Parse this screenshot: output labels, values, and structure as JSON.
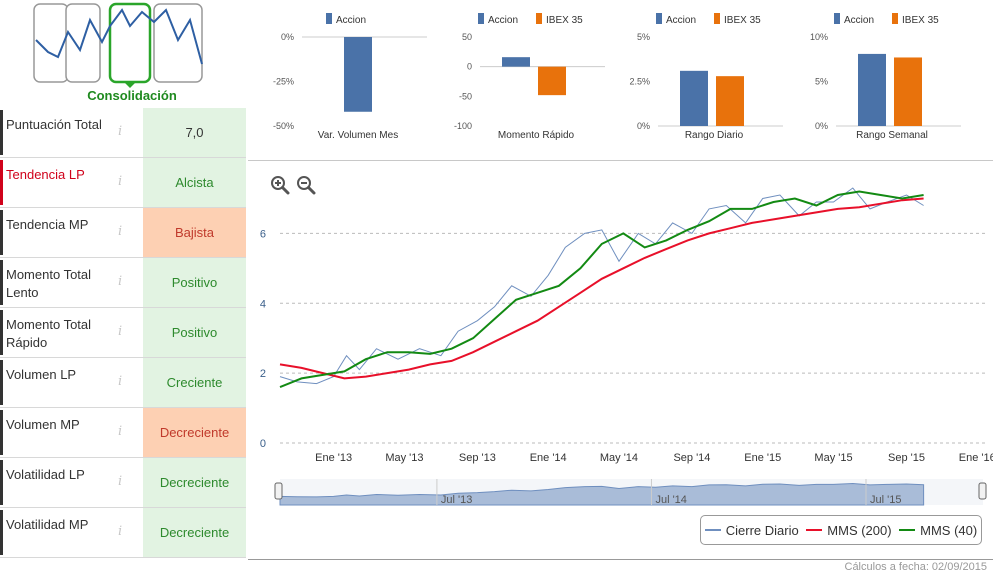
{
  "phase": {
    "label": "Consolidación",
    "selected_index": 2,
    "count": 4
  },
  "indicators": [
    {
      "name": "Puntuación Total",
      "value": "7,0",
      "tone": "neutral",
      "highlight": false
    },
    {
      "name": "Tendencia LP",
      "value": "Alcista",
      "tone": "pos",
      "highlight": true
    },
    {
      "name": "Tendencia MP",
      "value": "Bajista",
      "tone": "neg",
      "highlight": false
    },
    {
      "name": "Momento Total Lento",
      "value": "Positivo",
      "tone": "pos",
      "highlight": false
    },
    {
      "name": "Momento Total Rápido",
      "value": "Positivo",
      "tone": "pos",
      "highlight": false
    },
    {
      "name": "Volumen LP",
      "value": "Creciente",
      "tone": "pos",
      "highlight": false
    },
    {
      "name": "Volumen MP",
      "value": "Decreciente",
      "tone": "neg",
      "highlight": false
    },
    {
      "name": "Volatilidad LP",
      "value": "Decreciente",
      "tone": "pos",
      "highlight": false
    },
    {
      "name": "Volatilidad MP",
      "value": "Decreciente",
      "tone": "pos",
      "highlight": false
    }
  ],
  "info_glyph": "i",
  "colors": {
    "accion": "#4a72a8",
    "ibex": "#e8720c",
    "cierre": "#6f8fbf",
    "mms200": "#e8102a",
    "mms40": "#138a13",
    "phase_green": "#2aa52a"
  },
  "chart_data": [
    {
      "type": "bar",
      "title": "Var. Volumen Mes",
      "legend": [
        "Accion"
      ],
      "ticks": [
        "0%",
        "-25%",
        "-50%"
      ],
      "ylim": [
        -50,
        0
      ],
      "series": [
        {
          "name": "Accion",
          "values": [
            -42
          ]
        }
      ]
    },
    {
      "type": "bar",
      "title": "Momento Rápido",
      "legend": [
        "Accion",
        "IBEX 35"
      ],
      "ticks": [
        "50",
        "0",
        "-50",
        "-100"
      ],
      "ylim": [
        -100,
        50
      ],
      "series": [
        {
          "name": "Accion",
          "values": [
            16
          ]
        },
        {
          "name": "IBEX 35",
          "values": [
            -48
          ]
        }
      ]
    },
    {
      "type": "bar",
      "title": "Rango Diario",
      "legend": [
        "Accion",
        "IBEX 35"
      ],
      "ticks": [
        "5%",
        "2.5%",
        "0%"
      ],
      "ylim": [
        0,
        5
      ],
      "series": [
        {
          "name": "Accion",
          "values": [
            3.1
          ]
        },
        {
          "name": "IBEX 35",
          "values": [
            2.8
          ]
        }
      ]
    },
    {
      "type": "bar",
      "title": "Rango Semanal",
      "legend": [
        "Accion",
        "IBEX 35"
      ],
      "ticks": [
        "10%",
        "5%",
        "0%"
      ],
      "ylim": [
        0,
        10
      ],
      "series": [
        {
          "name": "Accion",
          "values": [
            8.1
          ]
        },
        {
          "name": "IBEX 35",
          "values": [
            7.7
          ]
        }
      ]
    },
    {
      "type": "line",
      "title": "",
      "ylim": [
        0,
        7.5
      ],
      "y_ticks": [
        "0",
        "2",
        "4",
        "6"
      ],
      "x_ticks": [
        "Ene '13",
        "May '13",
        "Sep '13",
        "Ene '14",
        "May '14",
        "Sep '14",
        "Ene '15",
        "May '15",
        "Sep '15",
        "Ene '16"
      ],
      "x_range": [
        2012.75,
        2016.05
      ],
      "series": [
        {
          "name": "Cierre Diario",
          "x": [
            2012.75,
            2012.83,
            2012.92,
            2013.0,
            2013.06,
            2013.12,
            2013.2,
            2013.3,
            2013.4,
            2013.5,
            2013.58,
            2013.67,
            2013.75,
            2013.83,
            2013.92,
            2014.0,
            2014.08,
            2014.17,
            2014.25,
            2014.33,
            2014.42,
            2014.5,
            2014.58,
            2014.67,
            2014.75,
            2014.83,
            2014.92,
            2015.0,
            2015.08,
            2015.17,
            2015.25,
            2015.33,
            2015.42,
            2015.5,
            2015.58,
            2015.67,
            2015.75
          ],
          "y": [
            1.9,
            1.75,
            1.7,
            1.9,
            2.5,
            2.1,
            2.7,
            2.4,
            2.7,
            2.5,
            3.2,
            3.5,
            3.9,
            4.5,
            4.2,
            4.8,
            5.6,
            6.0,
            6.1,
            5.2,
            6.0,
            5.7,
            6.3,
            6.0,
            6.7,
            6.8,
            6.3,
            7.0,
            7.1,
            6.5,
            6.9,
            6.9,
            7.3,
            6.7,
            6.9,
            7.1,
            6.8
          ]
        },
        {
          "name": "MMS (200)",
          "x": [
            2012.75,
            2012.85,
            2012.95,
            2013.05,
            2013.15,
            2013.25,
            2013.35,
            2013.45,
            2013.55,
            2013.65,
            2013.75,
            2013.85,
            2013.95,
            2014.05,
            2014.15,
            2014.25,
            2014.35,
            2014.45,
            2014.55,
            2014.65,
            2014.75,
            2014.85,
            2014.95,
            2015.05,
            2015.15,
            2015.25,
            2015.35,
            2015.45,
            2015.55,
            2015.65,
            2015.75
          ],
          "y": [
            2.25,
            2.15,
            2.0,
            1.85,
            1.9,
            2.0,
            2.1,
            2.25,
            2.35,
            2.6,
            2.9,
            3.2,
            3.5,
            3.9,
            4.3,
            4.7,
            5.0,
            5.3,
            5.55,
            5.8,
            6.0,
            6.15,
            6.3,
            6.4,
            6.5,
            6.6,
            6.7,
            6.75,
            6.85,
            6.95,
            7.0
          ]
        },
        {
          "name": "MMS (40)",
          "x": [
            2012.75,
            2012.85,
            2012.95,
            2013.05,
            2013.15,
            2013.25,
            2013.35,
            2013.45,
            2013.55,
            2013.65,
            2013.75,
            2013.85,
            2013.95,
            2014.05,
            2014.15,
            2014.25,
            2014.35,
            2014.45,
            2014.55,
            2014.65,
            2014.75,
            2014.85,
            2014.95,
            2015.05,
            2015.15,
            2015.25,
            2015.35,
            2015.45,
            2015.55,
            2015.65,
            2015.75
          ],
          "y": [
            1.6,
            1.85,
            1.95,
            2.05,
            2.4,
            2.6,
            2.6,
            2.55,
            2.7,
            3.0,
            3.55,
            4.1,
            4.3,
            4.5,
            5.0,
            5.7,
            6.0,
            5.6,
            5.8,
            6.1,
            6.35,
            6.7,
            6.7,
            6.9,
            7.0,
            6.8,
            7.1,
            7.2,
            7.1,
            7.0,
            7.1
          ]
        }
      ],
      "navigator_ticks": [
        "Jul '13",
        "Jul '14",
        "Jul '15"
      ]
    }
  ],
  "legend_labels": [
    "Cierre Diario",
    "MMS (200)",
    "MMS (40)"
  ],
  "footer": {
    "calc_date": "Cálculos a fecha: 02/09/2015"
  },
  "icons": {
    "zoom_in": "zoom-in-icon",
    "zoom_out": "zoom-out-icon",
    "info": "info-icon"
  }
}
